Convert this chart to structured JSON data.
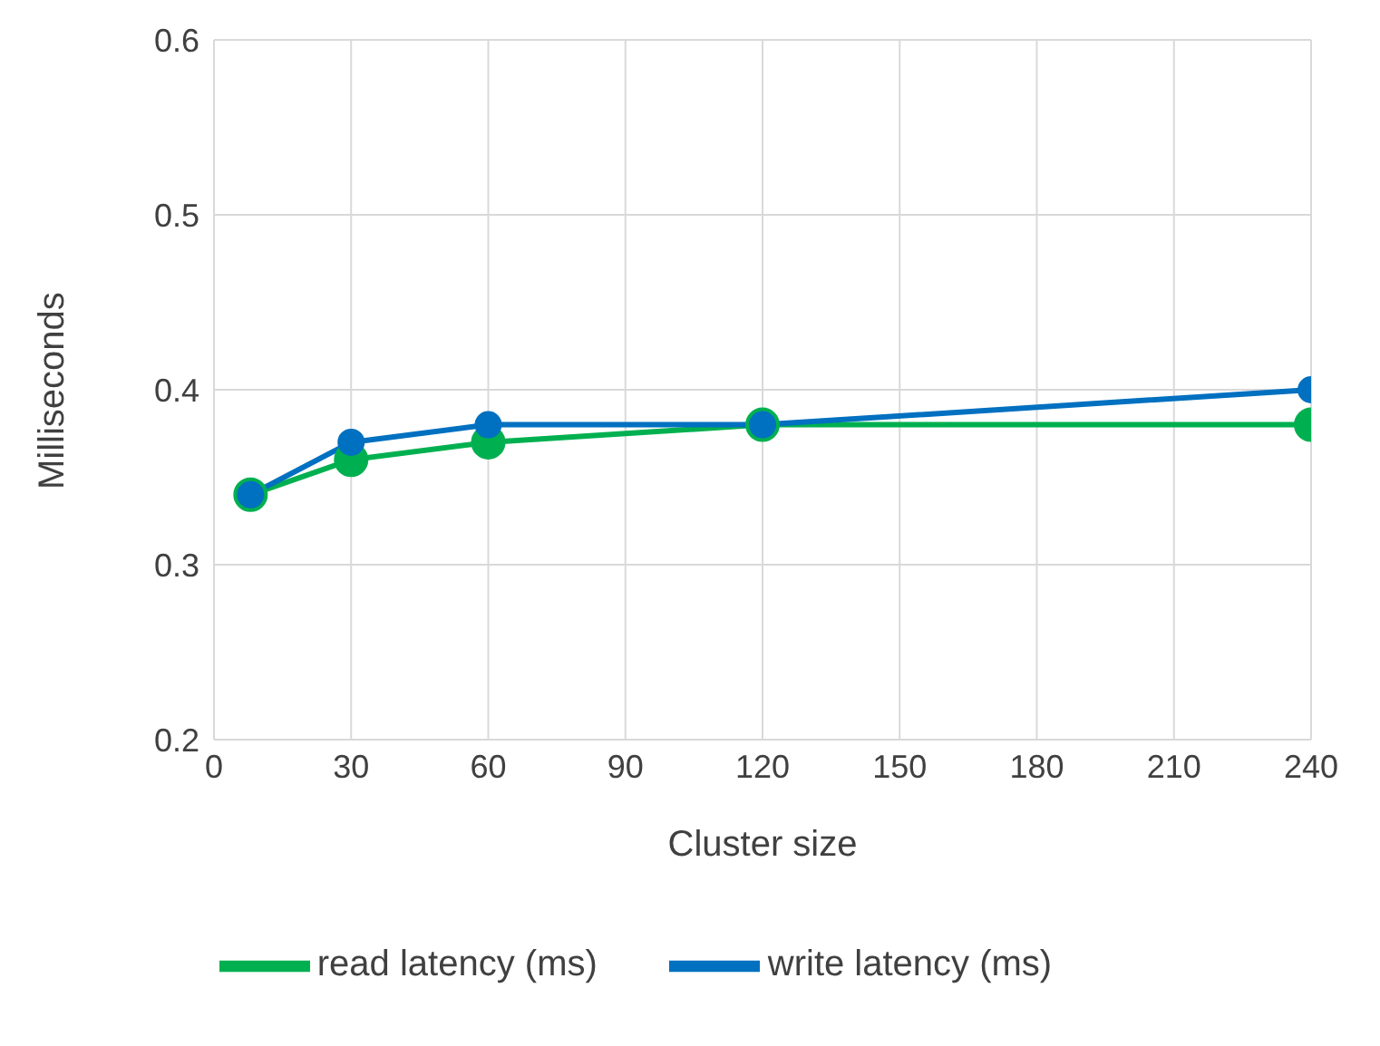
{
  "chart_data": {
    "type": "line",
    "xlabel": "Cluster size",
    "ylabel": "Milliseconds",
    "x": [
      8,
      30,
      60,
      120,
      240
    ],
    "series": [
      {
        "name": "read latency (ms)",
        "color": "#00b050",
        "values": [
          0.34,
          0.36,
          0.37,
          0.38,
          0.38
        ]
      },
      {
        "name": "write latency (ms)",
        "color": "#0070c0",
        "values": [
          0.34,
          0.37,
          0.38,
          0.38,
          0.4
        ]
      }
    ],
    "xlim": [
      0,
      240
    ],
    "xticks": [
      0,
      30,
      60,
      90,
      120,
      150,
      180,
      210,
      240
    ],
    "ylim": [
      0.2,
      0.6
    ],
    "yticks": [
      0.2,
      0.3,
      0.4,
      0.5,
      0.6
    ],
    "grid": true,
    "legend": "bottom",
    "marker": "circle",
    "line_style": "solid"
  }
}
